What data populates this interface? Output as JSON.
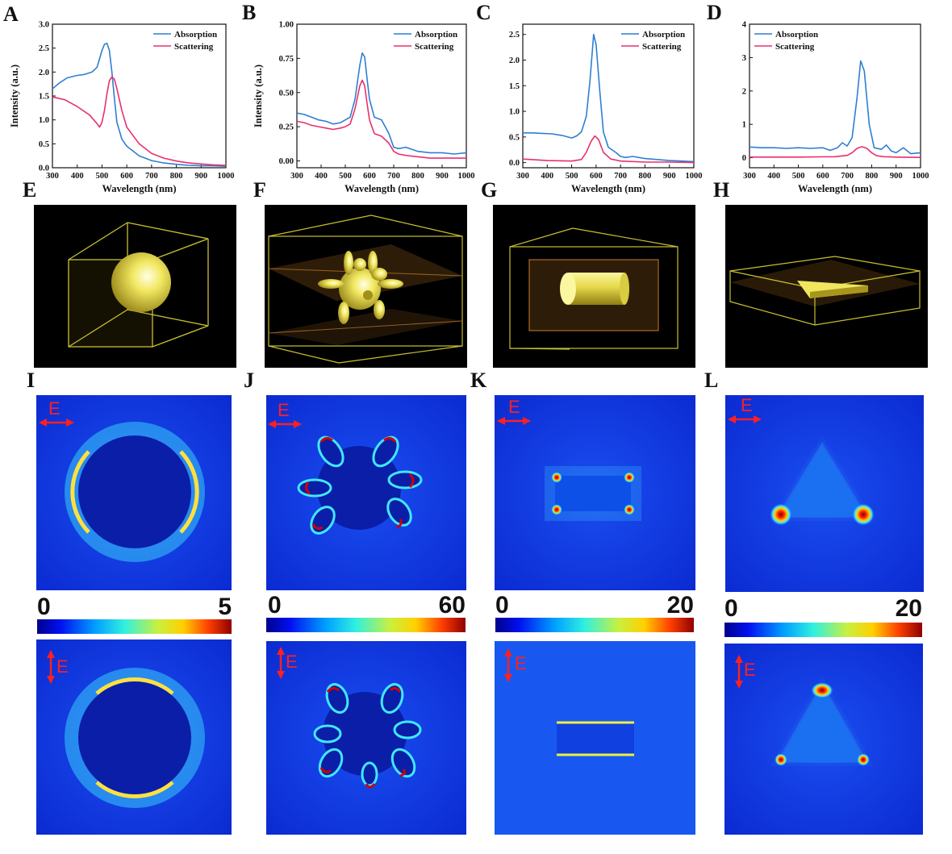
{
  "panel_letters": {
    "A": "A",
    "B": "B",
    "C": "C",
    "D": "D",
    "E": "E",
    "F": "F",
    "G": "G",
    "H": "H",
    "I": "I",
    "J": "J",
    "K": "K",
    "L": "L"
  },
  "colors": {
    "absorption": "#2f7fd0",
    "scattering": "#e8306e",
    "frame": "#c8c030",
    "field_background": "#0a2ad6",
    "arrow": "#ff2020"
  },
  "chart_data": [
    {
      "panel": "A",
      "type": "line",
      "xlabel": "Wavelength (nm)",
      "ylabel": "Intensity (a.u.)",
      "xlim": [
        300,
        1000
      ],
      "ylim": [
        0,
        3.0
      ],
      "xticks": [
        300,
        400,
        500,
        600,
        700,
        800,
        900,
        1000
      ],
      "yticks": [
        0,
        0.5,
        1.0,
        1.5,
        2.0,
        2.5,
        3.0
      ],
      "yticklabels": [
        "0.0",
        "0.5",
        "1.0",
        "1.5",
        "2.0",
        "2.5",
        "3.0"
      ],
      "series": [
        {
          "name": "Absorption",
          "x": [
            300,
            330,
            360,
            400,
            430,
            460,
            480,
            500,
            510,
            520,
            530,
            540,
            550,
            560,
            580,
            600,
            650,
            700,
            750,
            800,
            850,
            900,
            950,
            1000
          ],
          "y": [
            1.65,
            1.78,
            1.88,
            1.93,
            1.95,
            2.0,
            2.1,
            2.45,
            2.58,
            2.6,
            2.45,
            2.0,
            1.45,
            0.95,
            0.6,
            0.45,
            0.25,
            0.15,
            0.1,
            0.07,
            0.05,
            0.04,
            0.04,
            0.03
          ]
        },
        {
          "name": "Scattering",
          "x": [
            300,
            350,
            400,
            450,
            480,
            490,
            500,
            510,
            520,
            530,
            540,
            550,
            560,
            580,
            600,
            650,
            700,
            750,
            800,
            850,
            900,
            950,
            1000
          ],
          "y": [
            1.48,
            1.42,
            1.28,
            1.1,
            0.92,
            0.85,
            0.95,
            1.2,
            1.55,
            1.82,
            1.9,
            1.85,
            1.65,
            1.2,
            0.85,
            0.5,
            0.3,
            0.2,
            0.14,
            0.1,
            0.08,
            0.06,
            0.05
          ]
        }
      ],
      "legend": "top-right"
    },
    {
      "panel": "B",
      "type": "line",
      "xlabel": "Wavelength (nm)",
      "ylabel": "Intensity (a.u.)",
      "xlim": [
        300,
        1000
      ],
      "ylim": [
        -0.05,
        1.0
      ],
      "xticks": [
        300,
        400,
        500,
        600,
        700,
        800,
        900,
        1000
      ],
      "yticks": [
        0,
        0.25,
        0.5,
        0.75,
        1.0
      ],
      "yticklabels": [
        "0.00",
        "0.25",
        "0.50",
        "0.75",
        "1.00"
      ],
      "series": [
        {
          "name": "Absorption",
          "x": [
            300,
            330,
            360,
            390,
            420,
            450,
            480,
            500,
            520,
            540,
            560,
            570,
            580,
            590,
            600,
            620,
            650,
            680,
            700,
            720,
            750,
            800,
            850,
            900,
            950,
            1000
          ],
          "y": [
            0.35,
            0.34,
            0.32,
            0.3,
            0.29,
            0.27,
            0.28,
            0.3,
            0.32,
            0.45,
            0.7,
            0.79,
            0.76,
            0.6,
            0.45,
            0.32,
            0.3,
            0.2,
            0.1,
            0.09,
            0.1,
            0.07,
            0.06,
            0.06,
            0.05,
            0.06
          ]
        },
        {
          "name": "Scattering",
          "x": [
            300,
            330,
            360,
            390,
            420,
            450,
            480,
            500,
            520,
            540,
            560,
            570,
            580,
            590,
            600,
            620,
            650,
            680,
            700,
            720,
            750,
            800,
            850,
            900,
            950,
            1000
          ],
          "y": [
            0.29,
            0.28,
            0.26,
            0.25,
            0.24,
            0.23,
            0.24,
            0.25,
            0.27,
            0.38,
            0.55,
            0.59,
            0.55,
            0.42,
            0.3,
            0.2,
            0.18,
            0.13,
            0.07,
            0.05,
            0.04,
            0.03,
            0.02,
            0.02,
            0.02,
            0.02
          ]
        }
      ],
      "legend": "top-right"
    },
    {
      "panel": "C",
      "type": "line",
      "xlabel": "Wavelength (nm)",
      "ylabel": "",
      "xlim": [
        300,
        1000
      ],
      "ylim": [
        -0.1,
        2.7
      ],
      "xticks": [
        300,
        400,
        500,
        600,
        700,
        800,
        900,
        1000
      ],
      "yticks": [
        0,
        0.5,
        1.0,
        1.5,
        2.0,
        2.5
      ],
      "yticklabels": [
        "0.0",
        "0.5",
        "1.0",
        "1.5",
        "2.0",
        "2.5"
      ],
      "series": [
        {
          "name": "Absorption",
          "x": [
            300,
            340,
            380,
            420,
            460,
            500,
            520,
            540,
            560,
            575,
            590,
            600,
            615,
            630,
            650,
            680,
            700,
            720,
            750,
            800,
            850,
            900,
            950,
            1000
          ],
          "y": [
            0.58,
            0.58,
            0.57,
            0.56,
            0.53,
            0.48,
            0.52,
            0.6,
            0.9,
            1.6,
            2.5,
            2.3,
            1.4,
            0.6,
            0.3,
            0.2,
            0.12,
            0.1,
            0.12,
            0.08,
            0.06,
            0.04,
            0.03,
            0.02
          ]
        },
        {
          "name": "Scattering",
          "x": [
            300,
            400,
            500,
            540,
            560,
            580,
            595,
            610,
            630,
            660,
            700,
            800,
            900,
            1000
          ],
          "y": [
            0.07,
            0.04,
            0.03,
            0.06,
            0.2,
            0.42,
            0.52,
            0.45,
            0.2,
            0.07,
            0.03,
            0.01,
            0.01,
            0.0
          ]
        }
      ],
      "legend": "top-right"
    },
    {
      "panel": "D",
      "type": "line",
      "xlabel": "Wavelength (nm)",
      "ylabel": "",
      "xlim": [
        300,
        1000
      ],
      "ylim": [
        -0.3,
        4.0
      ],
      "xticks": [
        300,
        400,
        500,
        600,
        700,
        800,
        900,
        1000
      ],
      "yticks": [
        0,
        1,
        2,
        3,
        4
      ],
      "yticklabels": [
        "0",
        "1",
        "2",
        "3",
        "4"
      ],
      "series": [
        {
          "name": "Absorption",
          "x": [
            300,
            350,
            400,
            450,
            500,
            550,
            600,
            630,
            660,
            680,
            700,
            720,
            740,
            755,
            770,
            790,
            810,
            840,
            860,
            880,
            900,
            930,
            960,
            1000
          ],
          "y": [
            0.32,
            0.3,
            0.3,
            0.28,
            0.3,
            0.28,
            0.3,
            0.22,
            0.3,
            0.45,
            0.35,
            0.6,
            1.8,
            2.9,
            2.6,
            1.0,
            0.3,
            0.25,
            0.38,
            0.2,
            0.15,
            0.3,
            0.12,
            0.15
          ]
        },
        {
          "name": "Scattering",
          "x": [
            300,
            500,
            650,
            700,
            720,
            740,
            760,
            780,
            800,
            820,
            850,
            900,
            1000
          ],
          "y": [
            0.02,
            0.02,
            0.03,
            0.07,
            0.15,
            0.28,
            0.33,
            0.28,
            0.15,
            0.06,
            0.03,
            0.02,
            0.01
          ]
        }
      ],
      "legend": "top-left"
    }
  ],
  "colorbars": [
    {
      "min": "0",
      "max": "5"
    },
    {
      "min": "0",
      "max": "60"
    },
    {
      "min": "0",
      "max": "20"
    },
    {
      "min": "0",
      "max": "20"
    }
  ],
  "polarization_label": "E"
}
